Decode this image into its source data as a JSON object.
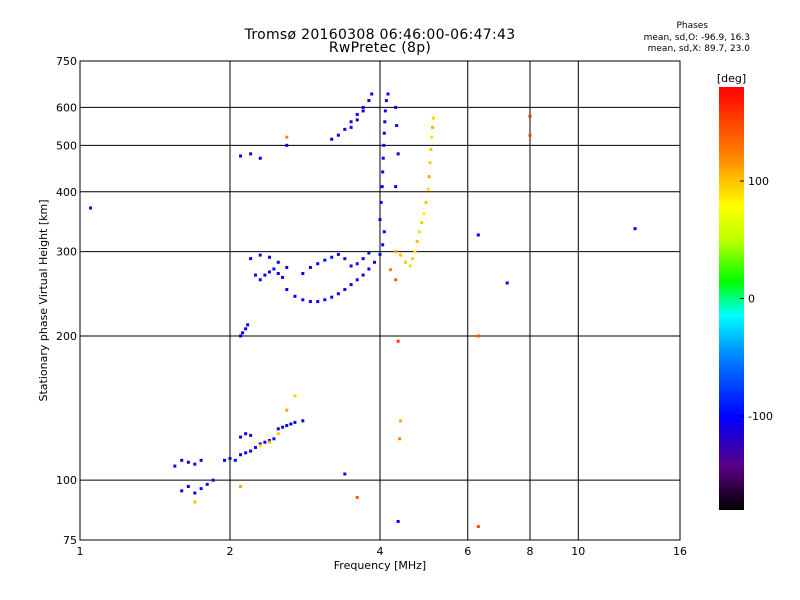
{
  "title": {
    "line1": "Tromsø 20160308 06:46:00-06:47:43",
    "line2": "RwPretec (8p)"
  },
  "stats": {
    "heading": "Phases",
    "o_line": "mean, sd,O: -96.9, 16.3",
    "x_line": "mean, sd,X:  89.7, 23.0"
  },
  "colorbar": {
    "unit_label": "[deg]",
    "range": [
      -180,
      180
    ],
    "ticks": [
      {
        "value": 100,
        "label": "100"
      },
      {
        "value": 0,
        "label": "0"
      },
      {
        "value": -100,
        "label": "-100"
      }
    ]
  },
  "chart_data": {
    "type": "scatter",
    "title": "Tromsø 20160308 06:46:00-06:47:43",
    "subtitle": "RwPretec (8p)",
    "xlabel": "Frequency [MHz]",
    "ylabel": "Stationary phase Virtual Height [km]",
    "xscale": "log2",
    "yscale": "log",
    "xlim": [
      1,
      16
    ],
    "ylim": [
      75,
      750
    ],
    "grid": true,
    "x_ticks": [
      {
        "value": 1,
        "label": "1"
      },
      {
        "value": 2,
        "label": "2"
      },
      {
        "value": 4,
        "label": "4"
      },
      {
        "value": 6,
        "label": "6"
      },
      {
        "value": 8,
        "label": "8"
      },
      {
        "value": 10,
        "label": "10"
      },
      {
        "value": 16,
        "label": "16"
      }
    ],
    "y_ticks": [
      {
        "value": 75,
        "label": "75"
      },
      {
        "value": 100,
        "label": "100"
      },
      {
        "value": 200,
        "label": "200"
      },
      {
        "value": 300,
        "label": "300"
      },
      {
        "value": 400,
        "label": "400"
      },
      {
        "value": 500,
        "label": "500"
      },
      {
        "value": 600,
        "label": "600"
      },
      {
        "value": 750,
        "label": "750"
      }
    ],
    "color_variable": "phase",
    "series": [
      {
        "name": "O",
        "points": [
          [
            1.05,
            370,
            -110
          ],
          [
            1.55,
            107,
            -105
          ],
          [
            1.6,
            110,
            -100
          ],
          [
            1.65,
            109,
            -110
          ],
          [
            1.7,
            108,
            -95
          ],
          [
            1.75,
            110,
            -105
          ],
          [
            1.6,
            95,
            -100
          ],
          [
            1.65,
            97,
            -110
          ],
          [
            1.7,
            94,
            -100
          ],
          [
            1.75,
            96,
            -95
          ],
          [
            1.8,
            98,
            -110
          ],
          [
            1.85,
            100,
            -105
          ],
          [
            1.95,
            110,
            -100
          ],
          [
            2.0,
            111,
            -105
          ],
          [
            2.05,
            110,
            -95
          ],
          [
            2.1,
            113,
            -110
          ],
          [
            2.15,
            114,
            -100
          ],
          [
            2.2,
            115,
            -105
          ],
          [
            2.25,
            117,
            -95
          ],
          [
            2.3,
            119,
            -110
          ],
          [
            2.35,
            120,
            -100
          ],
          [
            2.4,
            121,
            -105
          ],
          [
            2.45,
            122,
            -95
          ],
          [
            2.1,
            123,
            -110
          ],
          [
            2.15,
            125,
            -100
          ],
          [
            2.2,
            124,
            -110
          ],
          [
            2.5,
            128,
            -110
          ],
          [
            2.55,
            129,
            -90
          ],
          [
            2.6,
            130,
            -100
          ],
          [
            2.65,
            131,
            -105
          ],
          [
            2.7,
            132,
            -95
          ],
          [
            2.8,
            133,
            -110
          ],
          [
            2.1,
            200,
            -105
          ],
          [
            2.12,
            203,
            -100
          ],
          [
            2.15,
            207,
            -110
          ],
          [
            2.17,
            211,
            -100
          ],
          [
            2.3,
            262,
            -110
          ],
          [
            2.35,
            268,
            -100
          ],
          [
            2.4,
            272,
            -105
          ],
          [
            2.45,
            276,
            -95
          ],
          [
            2.5,
            270,
            -110
          ],
          [
            2.55,
            265,
            -100
          ],
          [
            2.25,
            268,
            -105
          ],
          [
            2.2,
            290,
            -110
          ],
          [
            2.3,
            295,
            -100
          ],
          [
            2.4,
            292,
            -105
          ],
          [
            2.5,
            285,
            -95
          ],
          [
            2.6,
            278,
            -110
          ],
          [
            2.6,
            250,
            -100
          ],
          [
            2.7,
            242,
            -105
          ],
          [
            2.8,
            238,
            -95
          ],
          [
            2.9,
            236,
            -110
          ],
          [
            3.0,
            236,
            -100
          ],
          [
            3.1,
            238,
            -105
          ],
          [
            3.2,
            241,
            -95
          ],
          [
            3.3,
            245,
            -110
          ],
          [
            3.4,
            250,
            -100
          ],
          [
            3.5,
            256,
            -105
          ],
          [
            3.6,
            262,
            -95
          ],
          [
            3.7,
            268,
            -110
          ],
          [
            3.8,
            276,
            -100
          ],
          [
            3.9,
            285,
            -105
          ],
          [
            4.0,
            296,
            -95
          ],
          [
            4.05,
            310,
            -110
          ],
          [
            4.08,
            330,
            -100
          ],
          [
            2.8,
            270,
            -105
          ],
          [
            2.9,
            278,
            -110
          ],
          [
            3.0,
            283,
            -100
          ],
          [
            3.1,
            288,
            -105
          ],
          [
            3.2,
            292,
            -95
          ],
          [
            3.3,
            296,
            -110
          ],
          [
            3.4,
            290,
            -100
          ],
          [
            3.5,
            280,
            -105
          ],
          [
            3.6,
            283,
            -95
          ],
          [
            3.7,
            290,
            -110
          ],
          [
            3.8,
            298,
            -100
          ],
          [
            3.2,
            515,
            -105
          ],
          [
            3.3,
            525,
            -110
          ],
          [
            3.4,
            540,
            -100
          ],
          [
            3.5,
            560,
            -105
          ],
          [
            3.6,
            580,
            -95
          ],
          [
            3.7,
            600,
            -110
          ],
          [
            3.8,
            620,
            -100
          ],
          [
            3.85,
            640,
            -105
          ],
          [
            3.5,
            545,
            -95
          ],
          [
            3.6,
            565,
            -110
          ],
          [
            3.7,
            590,
            -100
          ],
          [
            4.0,
            350,
            -105
          ],
          [
            4.02,
            380,
            -110
          ],
          [
            4.04,
            410,
            -100
          ],
          [
            4.05,
            440,
            -105
          ],
          [
            4.06,
            470,
            -95
          ],
          [
            4.07,
            500,
            -110
          ],
          [
            4.08,
            530,
            -100
          ],
          [
            4.09,
            560,
            -105
          ],
          [
            4.1,
            590,
            -95
          ],
          [
            4.12,
            620,
            -110
          ],
          [
            4.15,
            640,
            -100
          ],
          [
            4.3,
            600,
            -105
          ],
          [
            4.32,
            550,
            -95
          ],
          [
            4.35,
            480,
            -110
          ],
          [
            4.3,
            410,
            -100
          ],
          [
            2.1,
            475,
            -105
          ],
          [
            2.2,
            480,
            -110
          ],
          [
            2.3,
            470,
            -100
          ],
          [
            2.6,
            500,
            -105
          ],
          [
            6.3,
            325,
            -100
          ],
          [
            7.2,
            258,
            -110
          ],
          [
            13.0,
            335,
            -105
          ],
          [
            4.35,
            82,
            -100
          ],
          [
            3.4,
            103,
            -95
          ]
        ]
      },
      {
        "name": "X",
        "points": [
          [
            4.6,
            280,
            90
          ],
          [
            4.65,
            290,
            95
          ],
          [
            4.7,
            300,
            85
          ],
          [
            4.75,
            315,
            100
          ],
          [
            4.8,
            330,
            90
          ],
          [
            4.85,
            345,
            95
          ],
          [
            4.9,
            360,
            85
          ],
          [
            4.95,
            380,
            100
          ],
          [
            5.0,
            405,
            90
          ],
          [
            5.02,
            430,
            110
          ],
          [
            5.04,
            460,
            95
          ],
          [
            5.06,
            490,
            100
          ],
          [
            5.08,
            520,
            90
          ],
          [
            5.1,
            545,
            105
          ],
          [
            5.12,
            570,
            95
          ],
          [
            4.3,
            300,
            110
          ],
          [
            4.4,
            295,
            100
          ],
          [
            4.5,
            285,
            95
          ],
          [
            4.2,
            275,
            120
          ],
          [
            2.5,
            125,
            100
          ],
          [
            2.6,
            140,
            110
          ],
          [
            2.7,
            150,
            95
          ],
          [
            2.4,
            120,
            105
          ],
          [
            2.3,
            118,
            90
          ],
          [
            1.7,
            90,
            100
          ],
          [
            2.1,
            97,
            110
          ],
          [
            2.6,
            520,
            120
          ],
          [
            4.35,
            195,
            150
          ],
          [
            4.4,
            133,
            110
          ],
          [
            4.38,
            122,
            120
          ],
          [
            4.3,
            262,
            140
          ],
          [
            6.3,
            200,
            140
          ],
          [
            6.3,
            80,
            150
          ],
          [
            8.0,
            575,
            160
          ],
          [
            8.0,
            525,
            150
          ],
          [
            3.6,
            92,
            140
          ]
        ]
      }
    ]
  }
}
